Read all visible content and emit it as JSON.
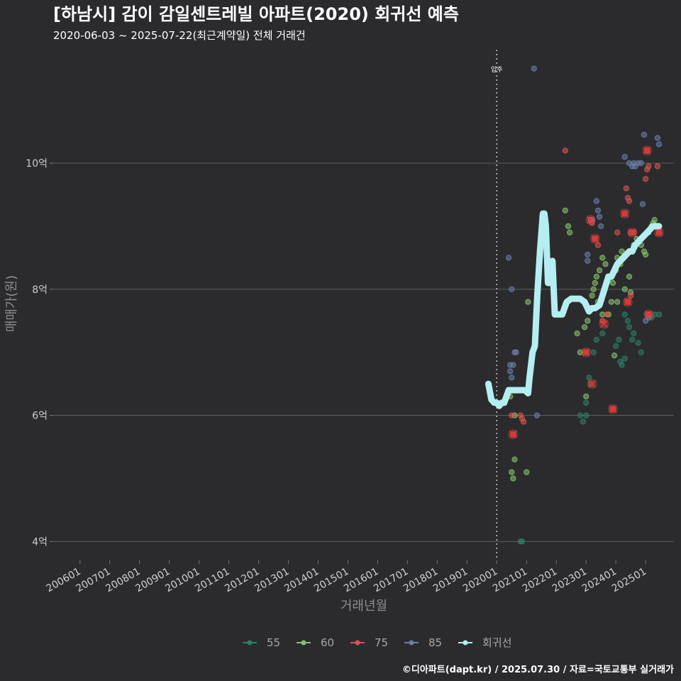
{
  "chart_data": {
    "type": "scatter",
    "title": "[하남시] 감이 감일센트레빌 아파트(2020) 회귀선 예측",
    "subtitle": "2020-06-03 ~ 2025-07-22(최근계약일) 전체 거래건",
    "xlabel": "거래년월",
    "ylabel": "매매가(원)",
    "caption": "©디아파트(dapt.kr) / 2025.07.30 / 자료=국토교통부 실거래가",
    "x_ticks": [
      "200601",
      "200701",
      "200801",
      "200901",
      "201001",
      "201101",
      "201201",
      "201301",
      "201401",
      "201501",
      "201601",
      "201701",
      "201801",
      "201901",
      "202001",
      "202101",
      "202201",
      "202301",
      "202401",
      "202501"
    ],
    "y_ticks": [
      "4억",
      "6억",
      "8억",
      "10억"
    ],
    "y_tick_values": [
      4,
      6,
      8,
      10
    ],
    "ylim": [
      3.7,
      11.8
    ],
    "xlim": [
      2005.1,
      2025.95
    ],
    "marker": {
      "label": "입주",
      "x": 2020.0
    },
    "legend": [
      {
        "name": "55",
        "color": "#2e7d6a"
      },
      {
        "name": "60",
        "color": "#86c26a"
      },
      {
        "name": "75",
        "color": "#d9534f"
      },
      {
        "name": "85",
        "color": "#6a7ea8"
      },
      {
        "name": "회귀선",
        "color": "#b5eef0"
      }
    ],
    "regression": {
      "name": "회귀선",
      "color": "#b5eef0",
      "x": [
        2019.72,
        2019.82,
        2019.92,
        2020.0,
        2020.08,
        2020.17,
        2020.25,
        2020.4,
        2020.6,
        2020.8,
        2020.95,
        2021.05,
        2021.1,
        2021.2,
        2021.28,
        2021.36,
        2021.45,
        2021.55,
        2021.6,
        2021.65,
        2021.72,
        2021.8,
        2021.87,
        2021.95,
        2022.05,
        2022.2,
        2022.35,
        2022.5,
        2022.65,
        2022.8,
        2022.95,
        2023.1,
        2023.2,
        2023.3,
        2023.45,
        2023.55,
        2023.65,
        2023.75,
        2023.85,
        2023.95,
        2024.05,
        2024.15,
        2024.25,
        2024.35,
        2024.45,
        2024.55,
        2024.65,
        2024.75,
        2024.85,
        2024.95,
        2025.05,
        2025.15,
        2025.25,
        2025.35,
        2025.45
      ],
      "y": [
        6.5,
        6.25,
        6.2,
        6.2,
        6.15,
        6.2,
        6.2,
        6.4,
        6.4,
        6.4,
        6.4,
        6.35,
        6.6,
        7.0,
        7.1,
        7.9,
        8.6,
        9.2,
        9.2,
        9.0,
        8.1,
        8.1,
        8.45,
        7.6,
        7.6,
        7.6,
        7.8,
        7.85,
        7.85,
        7.85,
        7.8,
        7.65,
        7.7,
        7.7,
        7.75,
        7.9,
        8.05,
        8.2,
        8.2,
        8.3,
        8.4,
        8.45,
        8.5,
        8.55,
        8.6,
        8.6,
        8.7,
        8.75,
        8.8,
        8.85,
        8.9,
        8.95,
        9.0,
        9.0,
        9.0
      ]
    },
    "series": [
      {
        "name": "55",
        "color": "#2e7d6a",
        "points": [
          [
            2020.8,
            4.0
          ],
          [
            2020.85,
            4.0
          ],
          [
            2022.8,
            6.0
          ],
          [
            2023.0,
            6.2
          ],
          [
            2023.1,
            6.6
          ],
          [
            2023.15,
            6.5
          ],
          [
            2023.25,
            7.0
          ],
          [
            2023.35,
            7.2
          ],
          [
            2023.55,
            7.3
          ],
          [
            2024.0,
            7.1
          ],
          [
            2024.1,
            7.2
          ],
          [
            2024.3,
            7.6
          ],
          [
            2024.4,
            7.5
          ],
          [
            2024.45,
            7.4
          ],
          [
            2024.55,
            7.2
          ],
          [
            2024.6,
            7.3
          ],
          [
            2024.75,
            7.15
          ],
          [
            2024.85,
            7.0
          ],
          [
            2025.05,
            7.6
          ],
          [
            2025.2,
            7.55
          ],
          [
            2025.3,
            7.6
          ],
          [
            2025.45,
            7.6
          ],
          [
            2023.0,
            6.0
          ],
          [
            2022.9,
            5.9
          ],
          [
            2024.2,
            6.8
          ],
          [
            2024.3,
            6.9
          ],
          [
            2024.15,
            6.85
          ]
        ]
      },
      {
        "name": "60",
        "color": "#86c26a",
        "points": [
          [
            2020.5,
            5.1
          ],
          [
            2020.55,
            5.0
          ],
          [
            2020.6,
            5.3
          ],
          [
            2021.0,
            5.1
          ],
          [
            2020.45,
            6.3
          ],
          [
            2020.6,
            6.0
          ],
          [
            2021.05,
            7.8
          ],
          [
            2022.3,
            9.25
          ],
          [
            2022.4,
            9.0
          ],
          [
            2022.45,
            8.9
          ],
          [
            2022.7,
            7.3
          ],
          [
            2022.8,
            7.0
          ],
          [
            2022.95,
            7.4
          ],
          [
            2023.0,
            6.3
          ],
          [
            2023.05,
            7.5
          ],
          [
            2023.1,
            7.7
          ],
          [
            2023.2,
            7.9
          ],
          [
            2023.25,
            8.0
          ],
          [
            2023.3,
            8.1
          ],
          [
            2023.35,
            8.2
          ],
          [
            2023.4,
            7.8
          ],
          [
            2023.45,
            8.3
          ],
          [
            2023.55,
            8.5
          ],
          [
            2023.65,
            8.4
          ],
          [
            2023.75,
            7.6
          ],
          [
            2023.85,
            7.8
          ],
          [
            2023.9,
            8.1
          ],
          [
            2024.0,
            8.3
          ],
          [
            2024.05,
            8.5
          ],
          [
            2024.15,
            8.4
          ],
          [
            2024.2,
            8.6
          ],
          [
            2024.3,
            8.0
          ],
          [
            2024.45,
            8.2
          ],
          [
            2024.5,
            7.95
          ],
          [
            2024.6,
            8.7
          ],
          [
            2024.7,
            8.8
          ],
          [
            2024.85,
            8.7
          ],
          [
            2024.95,
            8.6
          ],
          [
            2025.0,
            8.55
          ],
          [
            2025.1,
            8.9
          ],
          [
            2025.2,
            9.0
          ],
          [
            2025.25,
            9.05
          ],
          [
            2025.3,
            9.1
          ],
          [
            2023.55,
            7.6
          ],
          [
            2024.05,
            7.8
          ],
          [
            2023.95,
            6.95
          ]
        ]
      },
      {
        "name": "75",
        "color": "#d9534f",
        "points": [
          [
            2020.5,
            6.0
          ],
          [
            2020.55,
            5.7
          ],
          [
            2020.8,
            6.0
          ],
          [
            2020.85,
            5.95
          ],
          [
            2020.9,
            5.9
          ],
          [
            2022.3,
            10.2
          ],
          [
            2023.0,
            7.0
          ],
          [
            2023.15,
            9.1
          ],
          [
            2023.2,
            9.05
          ],
          [
            2023.3,
            8.8
          ],
          [
            2023.4,
            8.7
          ],
          [
            2023.55,
            7.5
          ],
          [
            2023.7,
            7.6
          ],
          [
            2023.9,
            6.1
          ],
          [
            2024.05,
            8.9
          ],
          [
            2024.3,
            9.2
          ],
          [
            2024.35,
            9.6
          ],
          [
            2024.4,
            9.45
          ],
          [
            2024.45,
            9.4
          ],
          [
            2024.5,
            8.9
          ],
          [
            2024.6,
            8.9
          ],
          [
            2024.4,
            7.8
          ],
          [
            2024.5,
            7.9
          ],
          [
            2025.0,
            9.75
          ],
          [
            2025.05,
            9.9
          ],
          [
            2025.1,
            9.95
          ],
          [
            2025.05,
            10.2
          ],
          [
            2025.1,
            7.6
          ],
          [
            2025.4,
            9.95
          ],
          [
            2025.45,
            8.9
          ]
        ]
      },
      {
        "name": "85",
        "color": "#6a7ea8",
        "points": [
          [
            2020.4,
            8.5
          ],
          [
            2020.5,
            8.0
          ],
          [
            2020.45,
            6.7
          ],
          [
            2020.5,
            6.6
          ],
          [
            2020.55,
            6.8
          ],
          [
            2020.6,
            7.0
          ],
          [
            2020.65,
            7.0
          ],
          [
            2020.45,
            6.8
          ],
          [
            2021.25,
            11.5
          ],
          [
            2021.35,
            6.0
          ],
          [
            2023.05,
            8.55
          ],
          [
            2023.05,
            8.45
          ],
          [
            2023.2,
            9.1
          ],
          [
            2023.35,
            9.4
          ],
          [
            2023.4,
            9.25
          ],
          [
            2023.45,
            9.15
          ],
          [
            2023.5,
            9.0
          ],
          [
            2024.3,
            10.1
          ],
          [
            2024.45,
            10.0
          ],
          [
            2024.55,
            9.95
          ],
          [
            2024.6,
            10.0
          ],
          [
            2024.65,
            9.95
          ],
          [
            2024.75,
            10.0
          ],
          [
            2024.85,
            10.0
          ],
          [
            2024.95,
            10.45
          ],
          [
            2025.4,
            10.4
          ],
          [
            2025.45,
            10.3
          ],
          [
            2024.9,
            9.35
          ],
          [
            2025.0,
            7.5
          ],
          [
            2025.1,
            7.55
          ]
        ]
      }
    ],
    "highlights": [
      [
        2020.55,
        5.7
      ],
      [
        2023.0,
        7.0
      ],
      [
        2023.15,
        9.1
      ],
      [
        2023.2,
        6.5
      ],
      [
        2023.3,
        8.8
      ],
      [
        2023.6,
        7.45
      ],
      [
        2023.9,
        6.1
      ],
      [
        2024.3,
        9.2
      ],
      [
        2024.4,
        7.8
      ],
      [
        2024.55,
        8.9
      ],
      [
        2025.05,
        10.2
      ],
      [
        2025.1,
        7.6
      ],
      [
        2025.45,
        8.9
      ]
    ]
  }
}
